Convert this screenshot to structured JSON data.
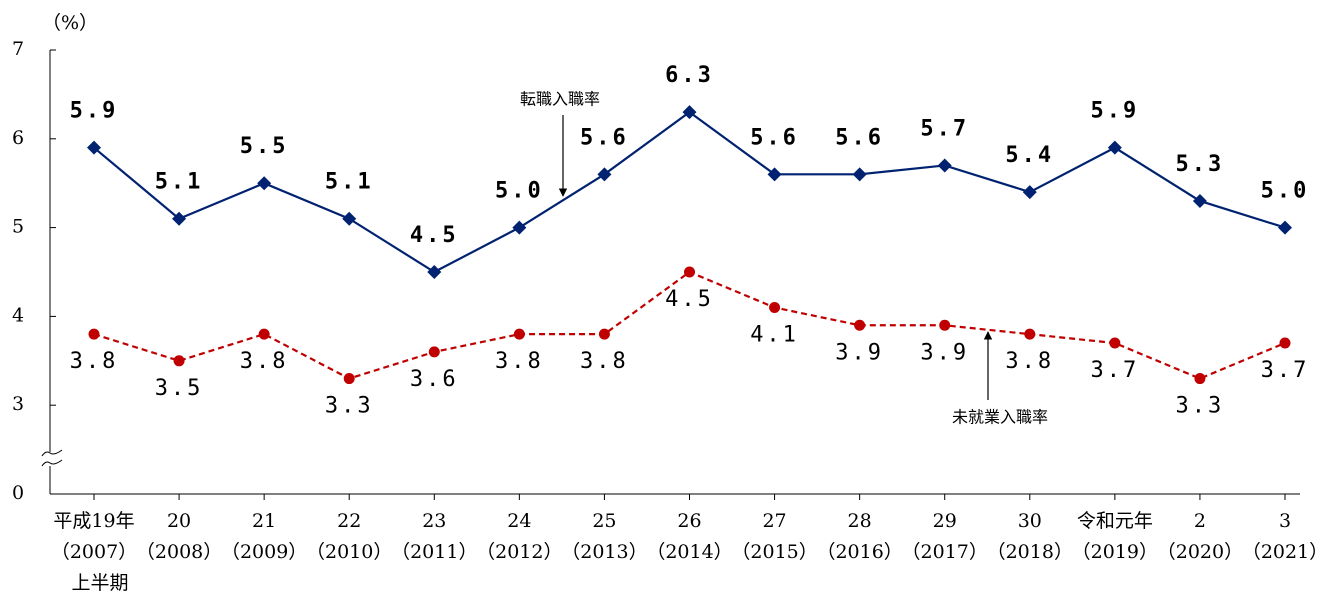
{
  "chart_data": {
    "type": "line",
    "y_label": "（%）",
    "categories": [
      "平成19年\n（2007）\n上半期",
      "20\n（2008）",
      "21\n（2009）",
      "22\n（2010）",
      "23\n（2011）",
      "24\n（2012）",
      "25\n（2013）",
      "26\n（2014）",
      "27\n（2015）",
      "28\n（2016）",
      "29\n（2017）",
      "30\n（2018）",
      "令和元年\n（2019）",
      "2\n（2020）",
      "3\n（2021）"
    ],
    "series": [
      {
        "name": "転職入職率",
        "color": "#002270",
        "marker": "diamond",
        "dash": false,
        "values": [
          5.9,
          5.1,
          5.5,
          5.1,
          4.5,
          5.0,
          5.6,
          6.3,
          5.6,
          5.6,
          5.7,
          5.4,
          5.9,
          5.3,
          5.0
        ],
        "value_labels": [
          "5.9",
          "5.1",
          "5.5",
          "5.1",
          "4.5",
          "5.0",
          "5.6",
          "6.3",
          "5.6",
          "5.6",
          "5.7",
          "5.4",
          "5.9",
          "5.3",
          "5.0"
        ]
      },
      {
        "name": "未就業入職率",
        "color": "#c00000",
        "marker": "circle",
        "dash": true,
        "values": [
          3.8,
          3.5,
          3.8,
          3.3,
          3.6,
          3.8,
          3.8,
          4.5,
          4.1,
          3.9,
          3.9,
          3.8,
          3.7,
          3.3,
          3.7
        ],
        "value_labels": [
          "3.8",
          "3.5",
          "3.8",
          "3.3",
          "3.6",
          "3.8",
          "3.8",
          "4.5",
          "4.1",
          "3.9",
          "3.9",
          "3.8",
          "3.7",
          "3.3",
          "3.7"
        ]
      }
    ],
    "ylim": [
      0,
      7
    ],
    "y_break": [
      0,
      2
    ],
    "yticks": [
      0,
      3,
      4,
      5,
      6,
      7
    ],
    "grid": false
  }
}
